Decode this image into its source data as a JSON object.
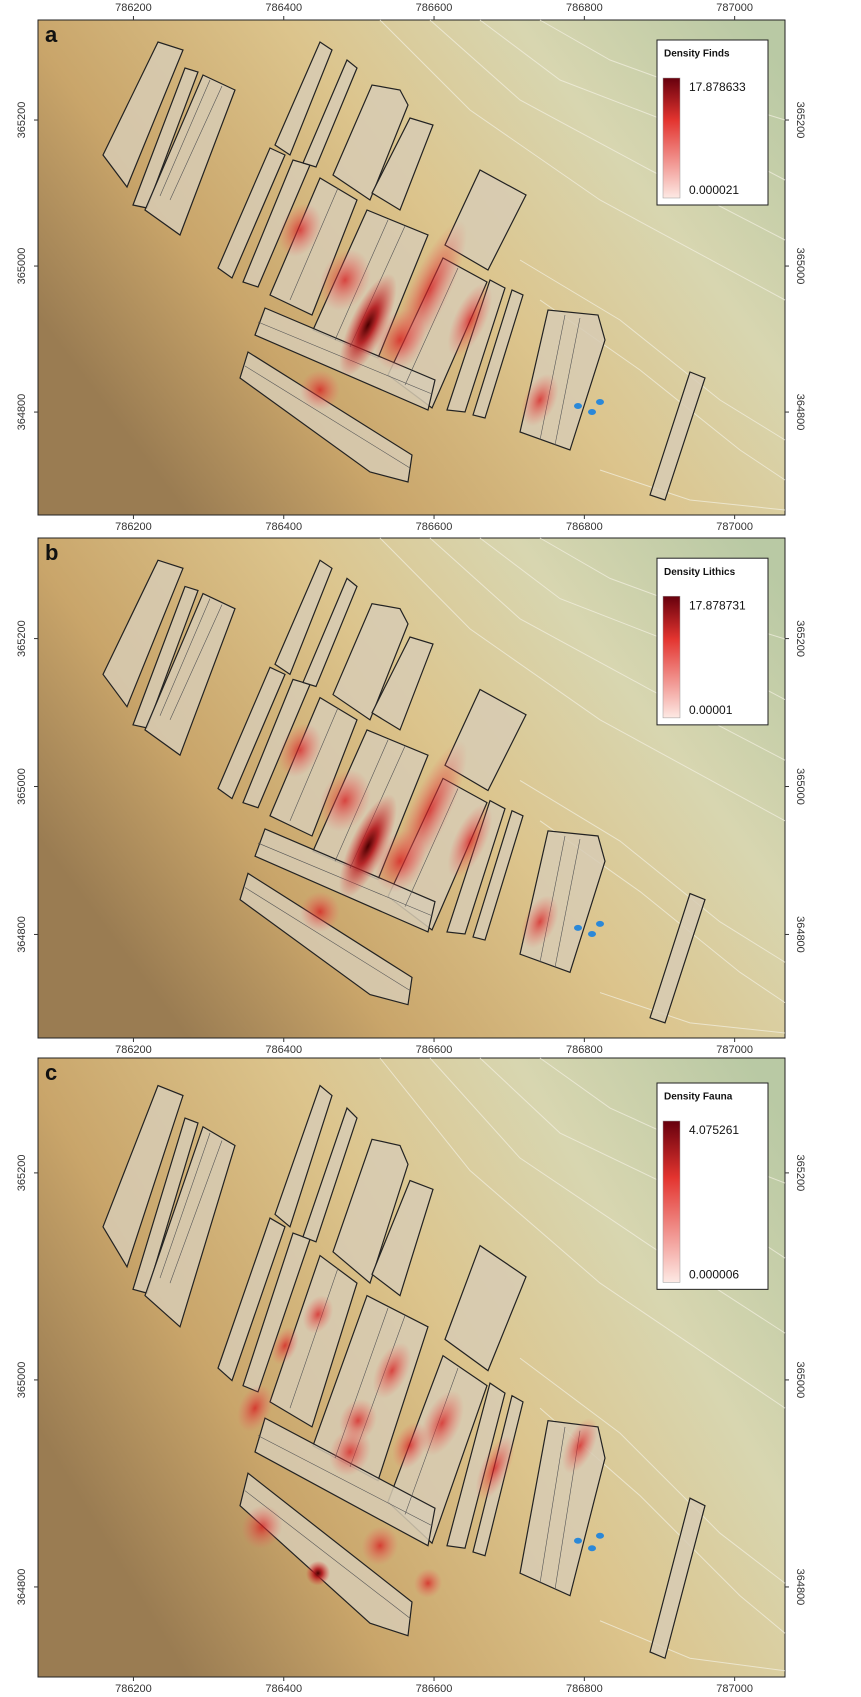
{
  "panels": [
    {
      "label": "a",
      "legend": {
        "title": "Density Finds",
        "max": 17.878633,
        "min": 2.1e-05
      },
      "xlim": [
        786073,
        787067
      ],
      "ylim": [
        364659,
        365337
      ],
      "xticks": [
        786200,
        786400,
        786600,
        786800,
        787000
      ],
      "yticks": [
        365200,
        365000,
        364800
      ]
    },
    {
      "label": "b",
      "legend": {
        "title": "Density Lithics",
        "max": 17.878731,
        "min": 1e-05
      },
      "xlim": [
        786073,
        787067
      ],
      "ylim": [
        364660,
        365336
      ],
      "xticks": [
        786200,
        786400,
        786600,
        786800,
        787000
      ],
      "yticks": [
        365200,
        365000,
        364800
      ]
    },
    {
      "label": "c",
      "legend": {
        "title": "Density Fauna",
        "max": 4.075261,
        "min": 6e-06
      },
      "xlim": [
        786073,
        787067
      ],
      "ylim": [
        364713,
        365311
      ],
      "xticks": [
        786200,
        786400,
        786600,
        786800,
        787000
      ],
      "yticks": [
        365200,
        365000,
        364800
      ]
    }
  ]
}
